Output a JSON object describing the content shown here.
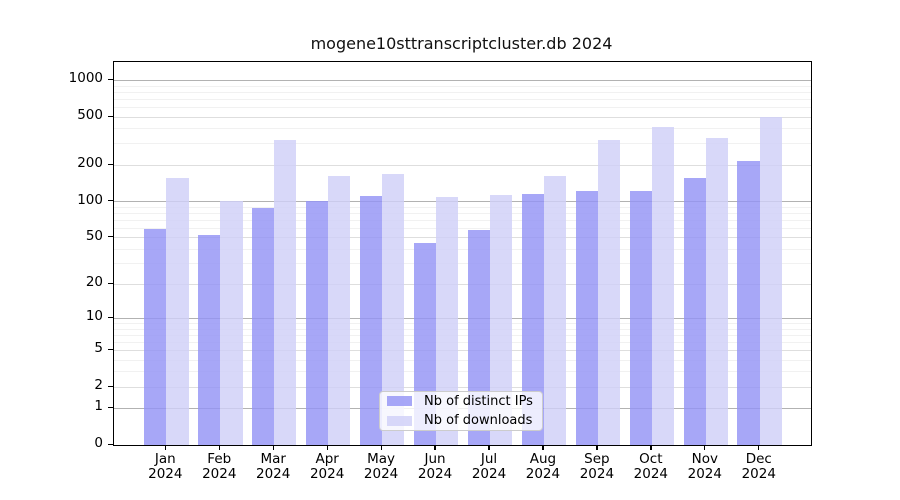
{
  "title": "mogene10sttranscriptcluster.db 2024",
  "colors": {
    "ips_bar": "rgba(148,148,245,0.82)",
    "downloads_bar": "rgba(207,207,248,0.82)",
    "ips_swatch_rendered": "#aaaaf0",
    "downloads_swatch_rendered": "#d4d4f5",
    "grid_major": "#b2b2b2",
    "grid_mid": "#dedede",
    "grid_minor": "#f1f1f1",
    "axis": "#000000"
  },
  "legend": {
    "entries": [
      {
        "label": "Nb of distinct IPs"
      },
      {
        "label": "Nb of downloads"
      }
    ]
  },
  "chart_data": {
    "type": "bar",
    "title": "mogene10sttranscriptcluster.db 2024",
    "categories": [
      "Jan 2024",
      "Feb 2024",
      "Mar 2024",
      "Apr 2024",
      "May 2024",
      "Jun 2024",
      "Jul 2024",
      "Aug 2024",
      "Sep 2024",
      "Oct 2024",
      "Nov 2024",
      "Dec 2024"
    ],
    "series": [
      {
        "name": "Nb of distinct IPs",
        "values": [
          58,
          52,
          88,
          100,
          110,
          45,
          57,
          115,
          120,
          122,
          155,
          215
        ]
      },
      {
        "name": "Nb of downloads",
        "values": [
          155,
          100,
          320,
          160,
          168,
          108,
          112,
          162,
          320,
          410,
          330,
          500
        ]
      }
    ],
    "xlabel": "",
    "ylabel": "",
    "y_scale": "log1p",
    "y_ticks": [
      0,
      1,
      2,
      5,
      10,
      20,
      50,
      100,
      200,
      500,
      1000
    ],
    "ylim": [
      0,
      1400
    ],
    "grid": "horizontal",
    "legend_position": "bottom-center-inside"
  }
}
